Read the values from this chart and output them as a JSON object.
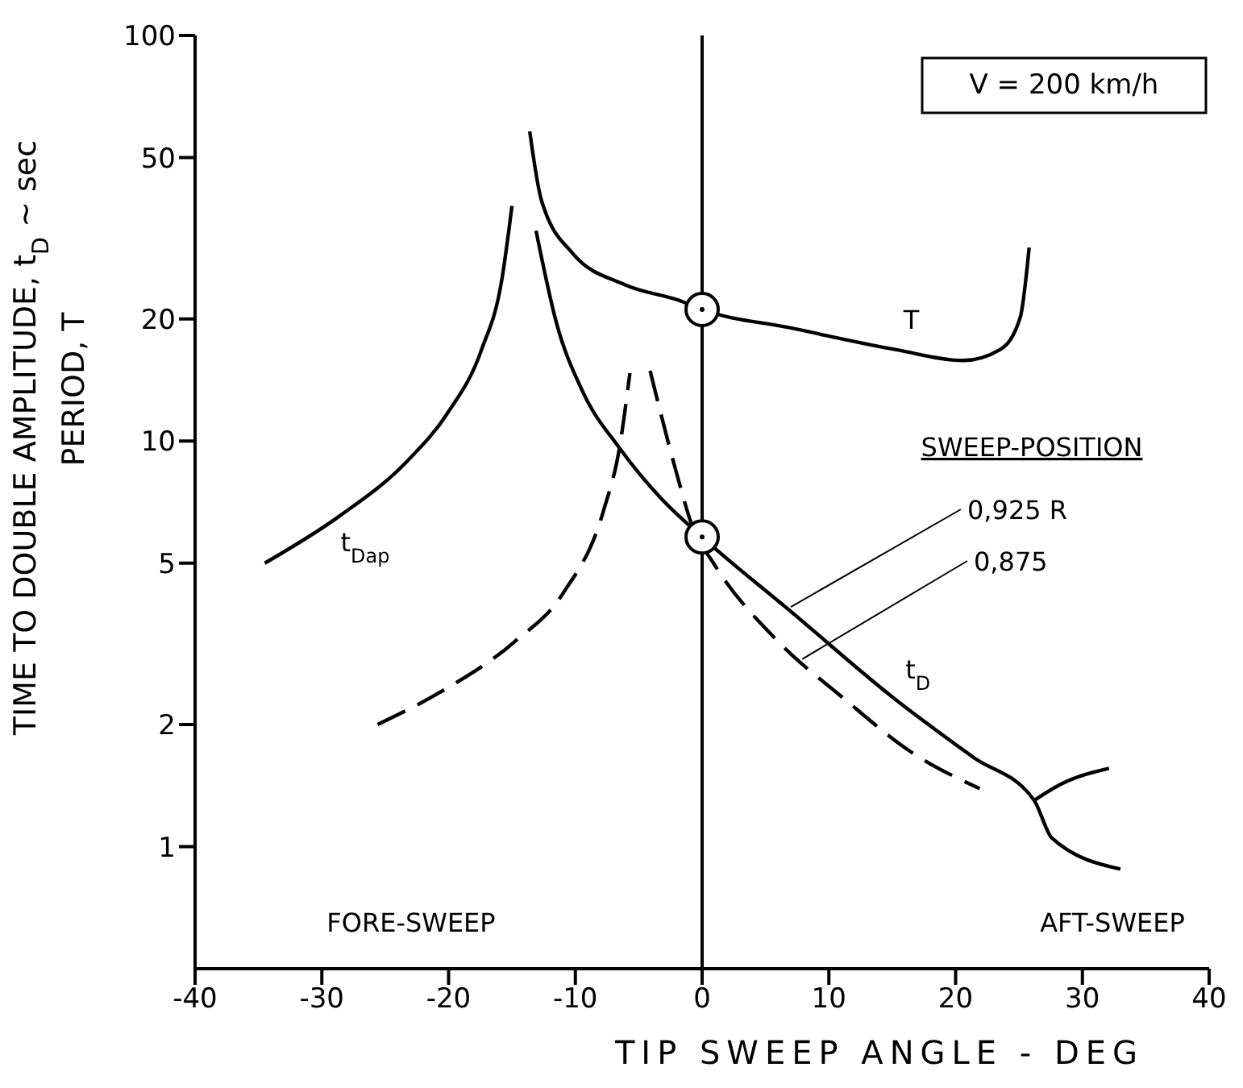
{
  "chart_data": {
    "type": "line",
    "xlabel": "TIP SWEEP ANGLE - DEG",
    "ylabel": "TIME TO DOUBLE AMPLITUDE, t$_{D}$ ~ sec\nPERIOD, T",
    "log": "y",
    "xlim": [
      -40,
      40
    ],
    "xticks": [
      -40,
      -30,
      -20,
      -10,
      0,
      10,
      20,
      30,
      40
    ],
    "ylim": [
      0.5,
      100
    ],
    "yticks": [
      1,
      2,
      5,
      10,
      20,
      50,
      100
    ],
    "series": [
      {
        "color": "#000000",
        "line_style": "solid",
        "x": [
          -13.6,
          -12.7,
          -10.2,
          -6.1,
          -1.6,
          0,
          7.0,
          15.3,
          20.6,
          23.5,
          25.1,
          25.8
        ],
        "values": [
          58,
          39.5,
          29,
          24.3,
          22.1,
          21.1,
          19,
          16.8,
          15.8,
          16.8,
          20.2,
          30
        ]
      },
      {
        "color": "#000000",
        "line_style": "solid",
        "x": [
          -34.5,
          -28.7,
          -23.3,
          -20.1,
          -17.4,
          -15.8,
          -15.0
        ],
        "values": [
          5.0,
          6.5,
          8.9,
          11.7,
          16.8,
          25,
          38
        ]
      },
      {
        "color": "#000000",
        "line_style": "solid",
        "x": [
          -13.1,
          -11.5,
          -9.4,
          -6.5,
          -3.2,
          0,
          7.0,
          15.3,
          21.4,
          26.2,
          27.6,
          33.0
        ],
        "values": [
          33,
          19.6,
          13.2,
          9.6,
          7.2,
          5.8,
          3.8,
          2.3,
          1.66,
          1.3,
          1.05,
          0.88
        ]
      },
      {
        "color": "#000000",
        "line_style": "solid",
        "x": [
          26.2,
          28.4,
          32.1
        ],
        "values": [
          1.3,
          1.43,
          1.56
        ]
      },
      {
        "color": "#000000",
        "line_style": "dashed",
        "x": [
          -25.6,
          -20.7,
          -14.8,
          -11.0,
          -7.8,
          -6.5,
          -5.7
        ],
        "values": [
          2.0,
          2.4,
          3.2,
          4.2,
          6.7,
          9.7,
          14.7
        ]
      },
      {
        "color": "#000000",
        "line_style": "dashed",
        "x": [
          -4.1,
          -2.0,
          -0.8,
          0.9,
          5.8,
          11.1,
          16.5,
          21.9
        ],
        "values": [
          14.9,
          8.3,
          6.2,
          5.0,
          3.25,
          2.33,
          1.71,
          1.39
        ]
      },
      {
        "type": "scatter",
        "color": "#000000",
        "marker": "circle",
        "x": [
          0,
          0
        ],
        "values": [
          21.1,
          5.8
        ]
      }
    ],
    "ref_lines": [
      {
        "axis": "x",
        "value": 0,
        "color": "#000000"
      }
    ],
    "annotations": [
      "V = 200 km/h",
      "SWEEP-POSITION",
      {
        "text": "0,925 R",
        "x": 7.0,
        "y": 3.9
      },
      {
        "text": "0,875",
        "x": 7.9,
        "y": 2.9
      },
      "FORE-SWEEP",
      "AFT-SWEEP",
      {
        "text": "T",
        "x": 16.5,
        "y": 16.6
      },
      {
        "text": "t$_{D}$",
        "x": 14,
        "y": 2.5
      },
      {
        "text": "t$_{Dap}$",
        "x": -27,
        "y": 6.9
      }
    ]
  }
}
